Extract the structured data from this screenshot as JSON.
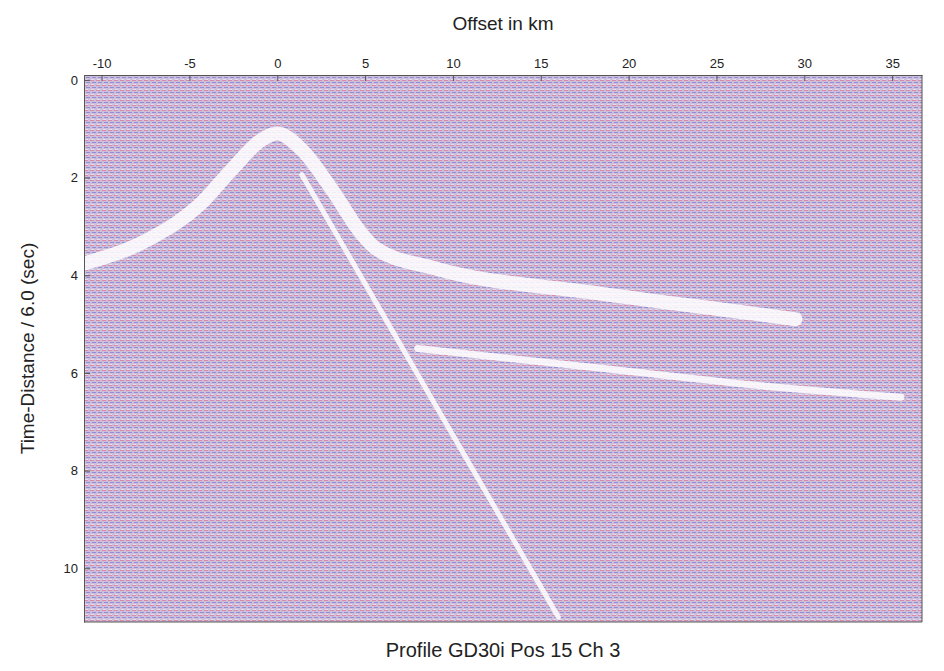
{
  "chart_data": {
    "type": "line",
    "title": "Profile GD30i Pos 15 Ch 3",
    "x_label": "Offset in km",
    "y_label": "Time-Distance / 6.0 (sec)",
    "xlim": [
      -11,
      36.7
    ],
    "ylim": [
      -0.1,
      11.1
    ],
    "xticks": [
      -10,
      -5,
      0,
      5,
      10,
      15,
      20,
      25,
      30,
      35
    ],
    "yticks": [
      0,
      2,
      4,
      6,
      8,
      10
    ],
    "grid": false,
    "series": [
      {
        "color": "#ffffff",
        "line_style": "solid",
        "x": [
          -11,
          -7.3,
          -4.4,
          -2.6,
          -0.9,
          0,
          1.4,
          3.1,
          4.8,
          5.6,
          9,
          18.3,
          27,
          29.5
        ],
        "values": [
          3.76,
          3.26,
          2.55,
          1.84,
          1.23,
          1.1,
          1.43,
          2.24,
          3.15,
          3.45,
          3.86,
          4.37,
          4.78,
          4.9
        ]
      },
      {
        "color": "#ffffff",
        "line_style": "solid",
        "x": [
          1.4,
          16
        ],
        "values": [
          1.94,
          11
        ]
      },
      {
        "color": "#ffffff",
        "line_style": "solid",
        "x": [
          8,
          18.3,
          28.6,
          35.5
        ],
        "values": [
          5.5,
          5.9,
          6.3,
          6.5
        ]
      }
    ]
  }
}
